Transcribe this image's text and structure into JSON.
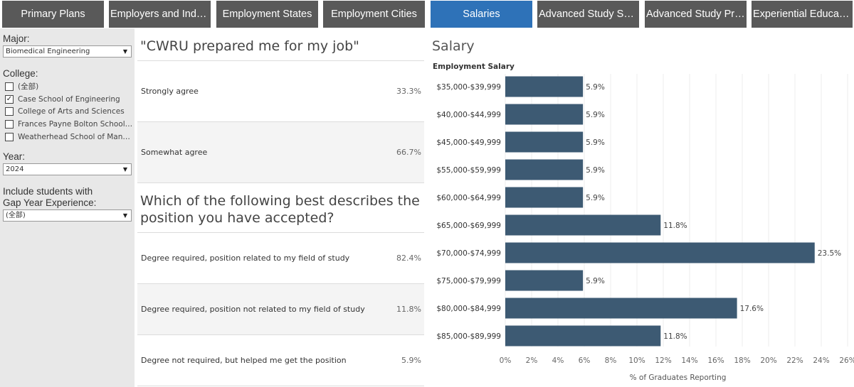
{
  "tabs": [
    {
      "label": "Primary Plans",
      "active": false
    },
    {
      "label": "Employers and Industries",
      "active": false
    },
    {
      "label": "Employment States",
      "active": false
    },
    {
      "label": "Employment Cities",
      "active": false
    },
    {
      "label": "Salaries",
      "active": true
    },
    {
      "label": "Advanced Study Schools",
      "active": false
    },
    {
      "label": "Advanced Study Programs",
      "active": false
    },
    {
      "label": "Experiential Education",
      "active": false
    }
  ],
  "filters": {
    "major": {
      "label": "Major:",
      "value": "Biomedical Engineering"
    },
    "college": {
      "label": "College:",
      "options": [
        {
          "label": "(全部)",
          "checked": false
        },
        {
          "label": "Case School of Engineering",
          "checked": true
        },
        {
          "label": "College of Arts and Sciences",
          "checked": false
        },
        {
          "label": "Frances Payne Bolton School of Nursing",
          "checked": false
        },
        {
          "label": "Weatherhead School of Management",
          "checked": false
        }
      ]
    },
    "year": {
      "label": "Year:",
      "value": "2024"
    },
    "gap_year": {
      "label_line1": "Include students with",
      "label_line2": "Gap Year Experience:",
      "value": "(全部)"
    }
  },
  "survey": {
    "q1": {
      "title": "\"CWRU prepared me for my job\"",
      "rows": [
        {
          "label": "Strongly agree",
          "pct": "33.3%"
        },
        {
          "label": "Somewhat agree",
          "pct": "66.7%"
        }
      ]
    },
    "q2": {
      "title_line1": "Which of the following best describes the",
      "title_line2": "position you have accepted?",
      "rows": [
        {
          "label": "Degree required, position related to my field of study",
          "pct": "82.4%"
        },
        {
          "label": "Degree required, position not related to my field of study",
          "pct": "11.8%"
        },
        {
          "label": "Degree not required, but helped me get the position",
          "pct": "5.9%"
        }
      ]
    }
  },
  "chart_data": {
    "type": "bar",
    "orientation": "horizontal",
    "title": "Salary",
    "subtitle": "Employment Salary",
    "xlabel": "% of Graduates Reporting",
    "categories": [
      "$35,000-$39,999",
      "$40,000-$44,999",
      "$45,000-$49,999",
      "$55,000-$59,999",
      "$60,000-$64,999",
      "$65,000-$69,999",
      "$70,000-$74,999",
      "$75,000-$79,999",
      "$80,000-$84,999",
      "$85,000-$89,999"
    ],
    "values": [
      5.9,
      5.9,
      5.9,
      5.9,
      5.9,
      11.8,
      23.5,
      5.9,
      17.6,
      11.8
    ],
    "value_labels": [
      "5.9%",
      "5.9%",
      "5.9%",
      "5.9%",
      "5.9%",
      "11.8%",
      "23.5%",
      "5.9%",
      "17.6%",
      "11.8%"
    ],
    "xticks": [
      "0%",
      "2%",
      "4%",
      "6%",
      "8%",
      "10%",
      "12%",
      "14%",
      "16%",
      "18%",
      "20%",
      "22%",
      "24%",
      "26%"
    ],
    "xlim": [
      0,
      26
    ],
    "bar_color": "#3d5a73",
    "grid": "vertical"
  }
}
